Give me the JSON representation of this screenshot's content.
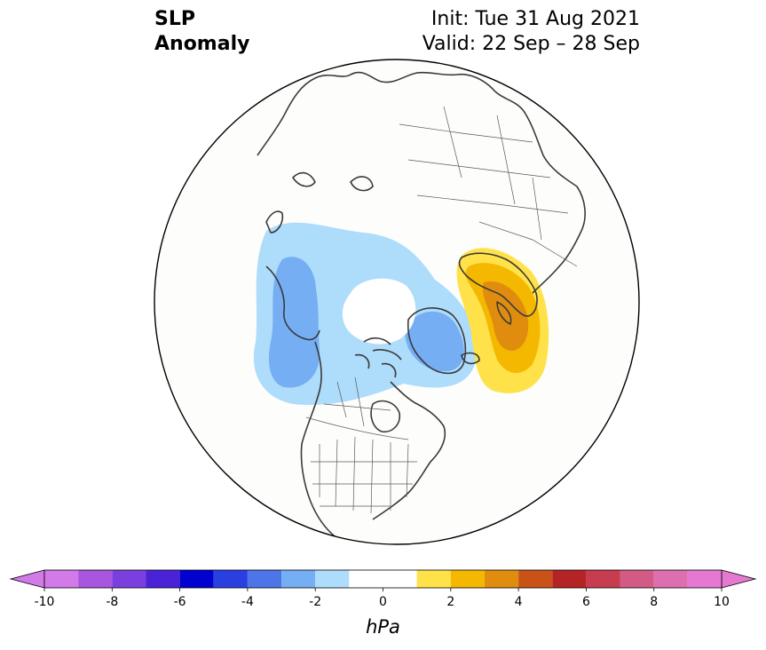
{
  "title": {
    "variable_line1": "SLP",
    "variable_line2": "Anomaly",
    "init": "Init: Tue 31 Aug 2021",
    "valid": "Valid: 22 Sep – 28 Sep"
  },
  "map": {
    "projection": "north-polar-stereographic",
    "field": "sea-level-pressure-anomaly",
    "missing_data_region": "north-pole",
    "anomaly_regions": [
      {
        "name": "negative-anomaly-north-pacific-alaska",
        "min_level": -3
      },
      {
        "name": "negative-anomaly-canadian-arctic-greenland",
        "min_level": -3
      },
      {
        "name": "positive-anomaly-scandinavia-barents",
        "max_level": 4
      }
    ]
  },
  "colorbar": {
    "unit_label": "hPa",
    "extend": "both",
    "levels": [
      -10,
      -9,
      -8,
      -7,
      -6,
      -5,
      -4,
      -3,
      -2,
      -1,
      1,
      2,
      3,
      4,
      5,
      6,
      7,
      8,
      9,
      10
    ],
    "colors": [
      "#d27ae8",
      "#a855e0",
      "#7a3fde",
      "#4b23d6",
      "#0202d0",
      "#2a3fe0",
      "#4d75e8",
      "#76aef3",
      "#aedcfb",
      "#ffffff",
      "#ffe24a",
      "#f4b800",
      "#e08d0f",
      "#c95316",
      "#b42424",
      "#c73c4e",
      "#d35a85",
      "#dd6fb0",
      "#e579d1"
    ],
    "under_color": "#d27ae8",
    "over_color": "#e579d1",
    "tick_values": [
      -10,
      -8,
      -6,
      -4,
      -2,
      0,
      2,
      4,
      6,
      8,
      10
    ],
    "tick_labels": [
      "-10",
      "-8",
      "-6",
      "-4",
      "-2",
      "0",
      "2",
      "4",
      "6",
      "8",
      "10"
    ]
  }
}
